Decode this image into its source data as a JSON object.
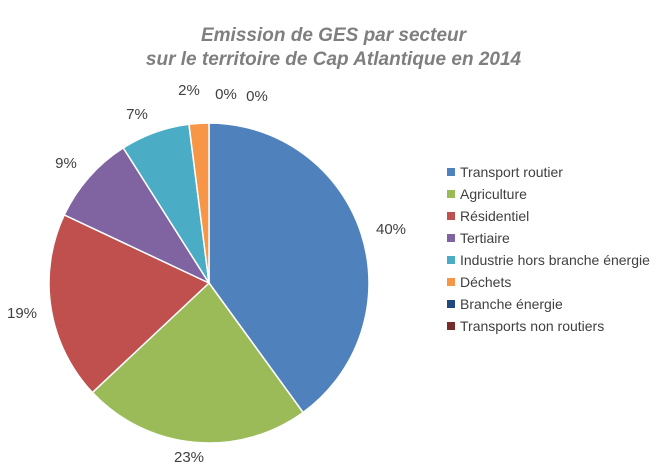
{
  "chart_data": {
    "type": "pie",
    "title": [
      "Emission de GES par secteur",
      "sur le territoire de Cap Atlantique en 2014"
    ],
    "categories": [
      "Transport routier",
      "Agriculture",
      "Résidentiel",
      "Tertiaire",
      "Industrie hors branche énergie",
      "Déchets",
      "Branche énergie",
      "Transports non routiers"
    ],
    "values": [
      40,
      23,
      19,
      9,
      7,
      2,
      0,
      0
    ],
    "labels": [
      "40%",
      "23%",
      "19%",
      "9%",
      "7%",
      "2%",
      "0%",
      "0%"
    ],
    "colors": [
      "#4f81bd",
      "#9bbb59",
      "#c0504d",
      "#8064a2",
      "#4bacc6",
      "#f79646",
      "#1f497d",
      "#772c2a"
    ],
    "legend_position": "right"
  }
}
